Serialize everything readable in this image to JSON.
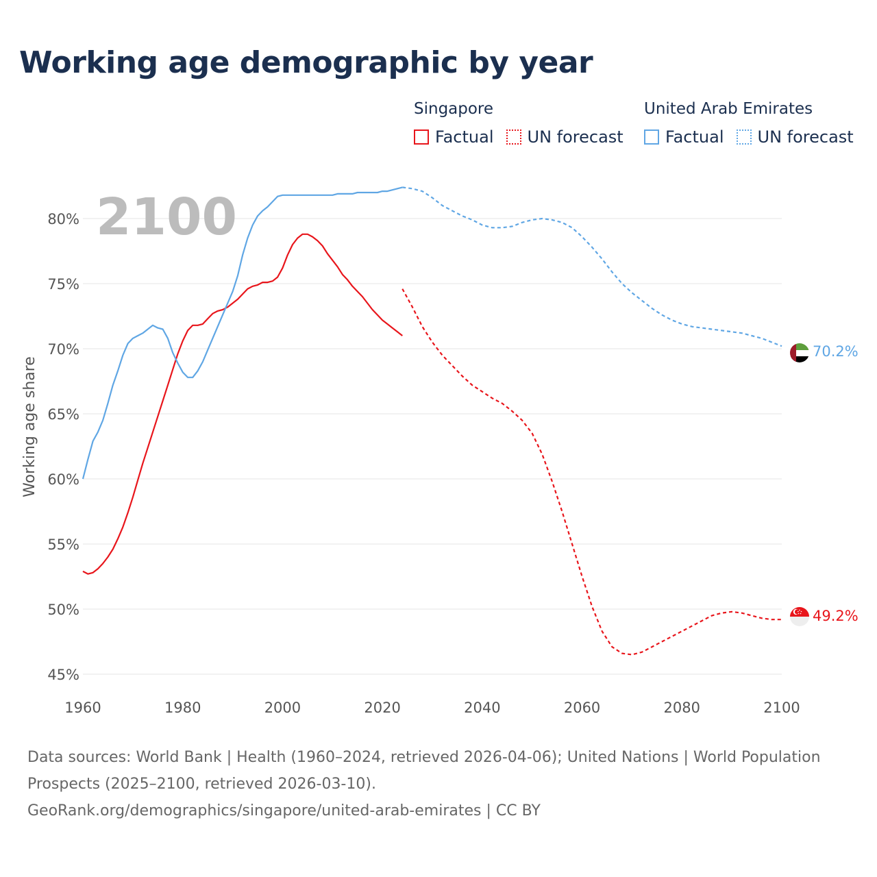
{
  "title": "Working age demographic by year",
  "legend": {
    "groups": [
      {
        "country": "Singapore",
        "factual_label": "Factual",
        "forecast_label": "UN forecast",
        "color": "#e8151b"
      },
      {
        "country": "United Arab Emirates",
        "factual_label": "Factual",
        "forecast_label": "UN forecast",
        "color": "#5fa6e4"
      }
    ]
  },
  "footer": {
    "sources": "Data sources: World Bank | Health (1960–2024, retrieved 2026-04-06); United Nations | World Population Prospects (2025–2100, retrieved 2026-03-10).",
    "attribution": "GeoRank.org/demographics/singapore/united-arab-emirates | CC BY"
  },
  "chart_data": {
    "type": "line",
    "year_label": "2100",
    "ylabel": "Working age share",
    "xlabel": "",
    "xlim": [
      1960,
      2100
    ],
    "ylim": [
      44,
      84
    ],
    "x_ticks": [
      1960,
      1980,
      2000,
      2020,
      2040,
      2060,
      2080,
      2100
    ],
    "x_tick_labels": [
      "1960",
      "1980",
      "2000",
      "2020",
      "2040",
      "2060",
      "2080",
      "2100"
    ],
    "y_ticks": [
      45,
      50,
      55,
      60,
      65,
      70,
      75,
      80
    ],
    "y_tick_labels": [
      "45%",
      "50%",
      "55%",
      "60%",
      "65%",
      "70%",
      "75%",
      "80%"
    ],
    "grid": true,
    "series": [
      {
        "name": "Singapore",
        "color": "#e8151b",
        "end_label": "49.2%",
        "flag": "singapore-flag",
        "factual": [
          [
            1960,
            52.9
          ],
          [
            1961,
            52.7
          ],
          [
            1962,
            52.8
          ],
          [
            1963,
            53.1
          ],
          [
            1964,
            53.5
          ],
          [
            1965,
            54.0
          ],
          [
            1966,
            54.6
          ],
          [
            1967,
            55.4
          ],
          [
            1968,
            56.3
          ],
          [
            1969,
            57.4
          ],
          [
            1970,
            58.6
          ],
          [
            1971,
            59.9
          ],
          [
            1972,
            61.2
          ],
          [
            1973,
            62.4
          ],
          [
            1974,
            63.6
          ],
          [
            1975,
            64.8
          ],
          [
            1976,
            66.0
          ],
          [
            1977,
            67.2
          ],
          [
            1978,
            68.4
          ],
          [
            1979,
            69.6
          ],
          [
            1980,
            70.6
          ],
          [
            1981,
            71.4
          ],
          [
            1982,
            71.8
          ],
          [
            1983,
            71.8
          ],
          [
            1984,
            71.9
          ],
          [
            1985,
            72.3
          ],
          [
            1986,
            72.7
          ],
          [
            1987,
            72.9
          ],
          [
            1988,
            73.0
          ],
          [
            1989,
            73.2
          ],
          [
            1990,
            73.5
          ],
          [
            1991,
            73.8
          ],
          [
            1992,
            74.2
          ],
          [
            1993,
            74.6
          ],
          [
            1994,
            74.8
          ],
          [
            1995,
            74.9
          ],
          [
            1996,
            75.1
          ],
          [
            1997,
            75.1
          ],
          [
            1998,
            75.2
          ],
          [
            1999,
            75.5
          ],
          [
            2000,
            76.2
          ],
          [
            2001,
            77.2
          ],
          [
            2002,
            78.0
          ],
          [
            2003,
            78.5
          ],
          [
            2004,
            78.8
          ],
          [
            2005,
            78.8
          ],
          [
            2006,
            78.6
          ],
          [
            2007,
            78.3
          ],
          [
            2008,
            77.9
          ],
          [
            2009,
            77.3
          ],
          [
            2010,
            76.8
          ],
          [
            2011,
            76.3
          ],
          [
            2012,
            75.7
          ],
          [
            2013,
            75.3
          ],
          [
            2014,
            74.8
          ],
          [
            2015,
            74.4
          ],
          [
            2016,
            74.0
          ],
          [
            2017,
            73.5
          ],
          [
            2018,
            73.0
          ],
          [
            2019,
            72.6
          ],
          [
            2020,
            72.2
          ],
          [
            2021,
            71.9
          ],
          [
            2022,
            71.6
          ],
          [
            2023,
            71.3
          ],
          [
            2024,
            71.0
          ]
        ],
        "forecast": [
          [
            2024,
            74.6
          ],
          [
            2026,
            73.2
          ],
          [
            2028,
            71.7
          ],
          [
            2030,
            70.5
          ],
          [
            2032,
            69.5
          ],
          [
            2034,
            68.7
          ],
          [
            2036,
            67.9
          ],
          [
            2038,
            67.2
          ],
          [
            2040,
            66.7
          ],
          [
            2042,
            66.2
          ],
          [
            2044,
            65.8
          ],
          [
            2046,
            65.2
          ],
          [
            2048,
            64.5
          ],
          [
            2050,
            63.5
          ],
          [
            2052,
            61.9
          ],
          [
            2054,
            59.8
          ],
          [
            2056,
            57.5
          ],
          [
            2058,
            55.0
          ],
          [
            2060,
            52.5
          ],
          [
            2062,
            50.2
          ],
          [
            2064,
            48.3
          ],
          [
            2066,
            47.1
          ],
          [
            2068,
            46.6
          ],
          [
            2070,
            46.5
          ],
          [
            2072,
            46.7
          ],
          [
            2074,
            47.1
          ],
          [
            2076,
            47.5
          ],
          [
            2078,
            47.9
          ],
          [
            2080,
            48.3
          ],
          [
            2082,
            48.7
          ],
          [
            2084,
            49.1
          ],
          [
            2086,
            49.5
          ],
          [
            2088,
            49.7
          ],
          [
            2090,
            49.8
          ],
          [
            2092,
            49.7
          ],
          [
            2094,
            49.5
          ],
          [
            2096,
            49.3
          ],
          [
            2098,
            49.2
          ],
          [
            2100,
            49.2
          ]
        ]
      },
      {
        "name": "United Arab Emirates",
        "color": "#5fa6e4",
        "end_label": "70.2%",
        "flag": "uae-flag",
        "factual": [
          [
            1960,
            60.0
          ],
          [
            1961,
            61.5
          ],
          [
            1962,
            62.9
          ],
          [
            1963,
            63.6
          ],
          [
            1964,
            64.5
          ],
          [
            1965,
            65.8
          ],
          [
            1966,
            67.2
          ],
          [
            1967,
            68.3
          ],
          [
            1968,
            69.5
          ],
          [
            1969,
            70.4
          ],
          [
            1970,
            70.8
          ],
          [
            1971,
            71.0
          ],
          [
            1972,
            71.2
          ],
          [
            1973,
            71.5
          ],
          [
            1974,
            71.8
          ],
          [
            1975,
            71.6
          ],
          [
            1976,
            71.5
          ],
          [
            1977,
            70.8
          ],
          [
            1978,
            69.7
          ],
          [
            1979,
            68.9
          ],
          [
            1980,
            68.2
          ],
          [
            1981,
            67.8
          ],
          [
            1982,
            67.8
          ],
          [
            1983,
            68.3
          ],
          [
            1984,
            69.0
          ],
          [
            1985,
            69.9
          ],
          [
            1986,
            70.8
          ],
          [
            1987,
            71.7
          ],
          [
            1988,
            72.6
          ],
          [
            1989,
            73.5
          ],
          [
            1990,
            74.4
          ],
          [
            1991,
            75.6
          ],
          [
            1992,
            77.2
          ],
          [
            1993,
            78.5
          ],
          [
            1994,
            79.5
          ],
          [
            1995,
            80.2
          ],
          [
            1996,
            80.6
          ],
          [
            1997,
            80.9
          ],
          [
            1998,
            81.3
          ],
          [
            1999,
            81.7
          ],
          [
            2000,
            81.8
          ],
          [
            2001,
            81.8
          ],
          [
            2002,
            81.8
          ],
          [
            2003,
            81.8
          ],
          [
            2004,
            81.8
          ],
          [
            2005,
            81.8
          ],
          [
            2006,
            81.8
          ],
          [
            2007,
            81.8
          ],
          [
            2008,
            81.8
          ],
          [
            2009,
            81.8
          ],
          [
            2010,
            81.8
          ],
          [
            2011,
            81.9
          ],
          [
            2012,
            81.9
          ],
          [
            2013,
            81.9
          ],
          [
            2014,
            81.9
          ],
          [
            2015,
            82.0
          ],
          [
            2016,
            82.0
          ],
          [
            2017,
            82.0
          ],
          [
            2018,
            82.0
          ],
          [
            2019,
            82.0
          ],
          [
            2020,
            82.1
          ],
          [
            2021,
            82.1
          ],
          [
            2022,
            82.2
          ],
          [
            2023,
            82.3
          ],
          [
            2024,
            82.4
          ]
        ],
        "forecast": [
          [
            2024,
            82.4
          ],
          [
            2026,
            82.3
          ],
          [
            2028,
            82.1
          ],
          [
            2030,
            81.6
          ],
          [
            2032,
            81.0
          ],
          [
            2034,
            80.6
          ],
          [
            2036,
            80.2
          ],
          [
            2038,
            79.9
          ],
          [
            2040,
            79.5
          ],
          [
            2042,
            79.3
          ],
          [
            2044,
            79.3
          ],
          [
            2046,
            79.4
          ],
          [
            2048,
            79.7
          ],
          [
            2050,
            79.9
          ],
          [
            2052,
            80.0
          ],
          [
            2054,
            79.9
          ],
          [
            2056,
            79.7
          ],
          [
            2058,
            79.3
          ],
          [
            2060,
            78.6
          ],
          [
            2062,
            77.8
          ],
          [
            2064,
            76.9
          ],
          [
            2066,
            75.9
          ],
          [
            2068,
            75.0
          ],
          [
            2070,
            74.3
          ],
          [
            2072,
            73.7
          ],
          [
            2074,
            73.1
          ],
          [
            2076,
            72.6
          ],
          [
            2078,
            72.2
          ],
          [
            2080,
            71.9
          ],
          [
            2082,
            71.7
          ],
          [
            2084,
            71.6
          ],
          [
            2086,
            71.5
          ],
          [
            2088,
            71.4
          ],
          [
            2090,
            71.3
          ],
          [
            2092,
            71.2
          ],
          [
            2094,
            71.0
          ],
          [
            2096,
            70.8
          ],
          [
            2098,
            70.5
          ],
          [
            2100,
            70.2
          ]
        ]
      }
    ]
  }
}
